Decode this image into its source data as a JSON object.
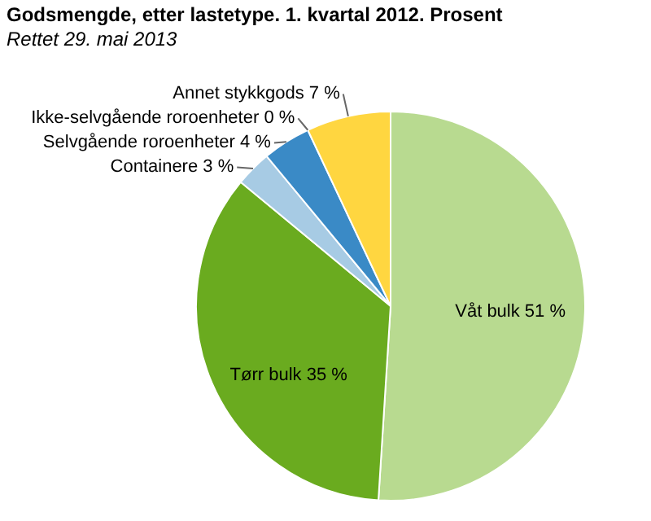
{
  "chart_data": {
    "type": "pie",
    "title": "Godsmengde, etter lastetype. 1. kvartal 2012. Prosent",
    "subtitle": "Rettet 29. mai 2013",
    "categories": [
      "Våt bulk",
      "Tørr bulk",
      "Containere",
      "Selvgående roroenheter",
      "Ikke-selvgående roroenheter",
      "Annet stykkgods"
    ],
    "values": [
      51,
      35,
      3,
      4,
      0,
      7
    ],
    "value_labels": [
      "51 %",
      "35 %",
      "3 %",
      "4 %",
      "0 %",
      "7 %"
    ],
    "colors": [
      "#b8da90",
      "#6aab1f",
      "#a7cbe4",
      "#3a8ac6",
      "#f07f1a",
      "#ffd640"
    ]
  }
}
